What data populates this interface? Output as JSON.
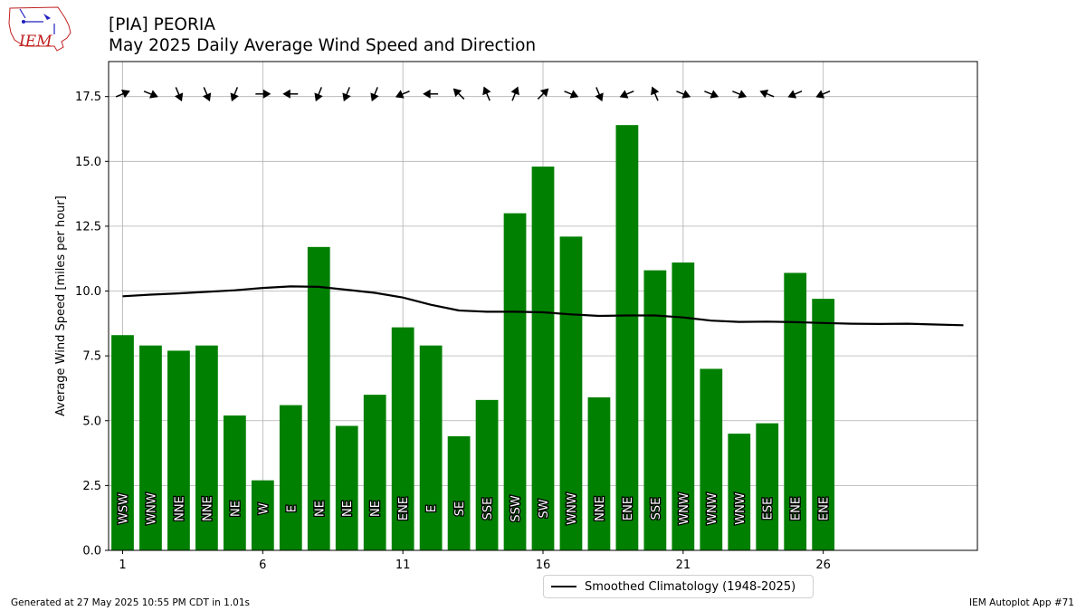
{
  "header": {
    "title_line1": "[PIA] PEORIA",
    "title_line2": "May 2025 Daily Average Wind Speed and Direction",
    "logo_text": "IEM"
  },
  "footer": {
    "generated": "Generated at 27 May 2025 10:55 PM CDT in 1.01s",
    "app": "IEM Autoplot App #71"
  },
  "legend": {
    "climatology_label": "Smoothed Climatology (1948-2025)"
  },
  "colors": {
    "bar": "#008000",
    "climo": "#000000",
    "grid": "#b0b0b0"
  },
  "chart_data": {
    "type": "bar",
    "ylabel": "Average Wind Speed [miles per hour]",
    "xlabel": "",
    "xlim": [
      0.5,
      31.5
    ],
    "ylim": [
      0,
      18.85
    ],
    "grid": true,
    "legend_position": "bottom-center",
    "x_ticks": [
      1,
      6,
      11,
      16,
      21,
      26
    ],
    "y_ticks": [
      "0.0",
      "2.5",
      "5.0",
      "7.5",
      "10.0",
      "12.5",
      "15.0",
      "17.5"
    ],
    "days": [
      1,
      2,
      3,
      4,
      5,
      6,
      7,
      8,
      9,
      10,
      11,
      12,
      13,
      14,
      15,
      16,
      17,
      18,
      19,
      20,
      21,
      22,
      23,
      24,
      25,
      26
    ],
    "speeds": [
      8.3,
      7.9,
      7.7,
      7.9,
      5.2,
      2.7,
      5.6,
      11.7,
      4.8,
      6.0,
      8.6,
      7.9,
      4.4,
      5.8,
      13.0,
      14.8,
      12.1,
      5.9,
      16.4,
      10.8,
      11.1,
      7.0,
      4.5,
      4.9,
      10.7,
      9.7
    ],
    "directions": [
      "WSW",
      "WNW",
      "NNE",
      "NNE",
      "NE",
      "W",
      "E",
      "NE",
      "NE",
      "NE",
      "ENE",
      "E",
      "SE",
      "SSE",
      "SSW",
      "SW",
      "WNW",
      "NNE",
      "ENE",
      "SSE",
      "WNW",
      "WNW",
      "WNW",
      "ESE",
      "ENE",
      "ENE"
    ],
    "arrow_bearings_to": [
      67,
      112,
      157,
      157,
      202,
      90,
      270,
      202,
      202,
      202,
      247,
      270,
      315,
      337,
      22,
      45,
      112,
      157,
      247,
      337,
      112,
      112,
      112,
      292,
      247,
      247
    ],
    "arrow_level": 17.6,
    "climatology": {
      "name": "Smoothed Climatology (1948-2025)",
      "x": [
        1,
        2,
        3,
        4,
        5,
        6,
        7,
        8,
        9,
        10,
        11,
        12,
        13,
        14,
        15,
        16,
        17,
        18,
        19,
        20,
        21,
        22,
        23,
        24,
        25,
        26,
        27,
        28,
        29,
        30,
        31
      ],
      "y": [
        9.8,
        9.86,
        9.91,
        9.97,
        10.03,
        10.12,
        10.18,
        10.16,
        10.05,
        9.93,
        9.75,
        9.47,
        9.25,
        9.2,
        9.2,
        9.18,
        9.1,
        9.04,
        9.06,
        9.06,
        8.98,
        8.86,
        8.81,
        8.82,
        8.8,
        8.77,
        8.74,
        8.73,
        8.74,
        8.71,
        8.68
      ]
    }
  }
}
